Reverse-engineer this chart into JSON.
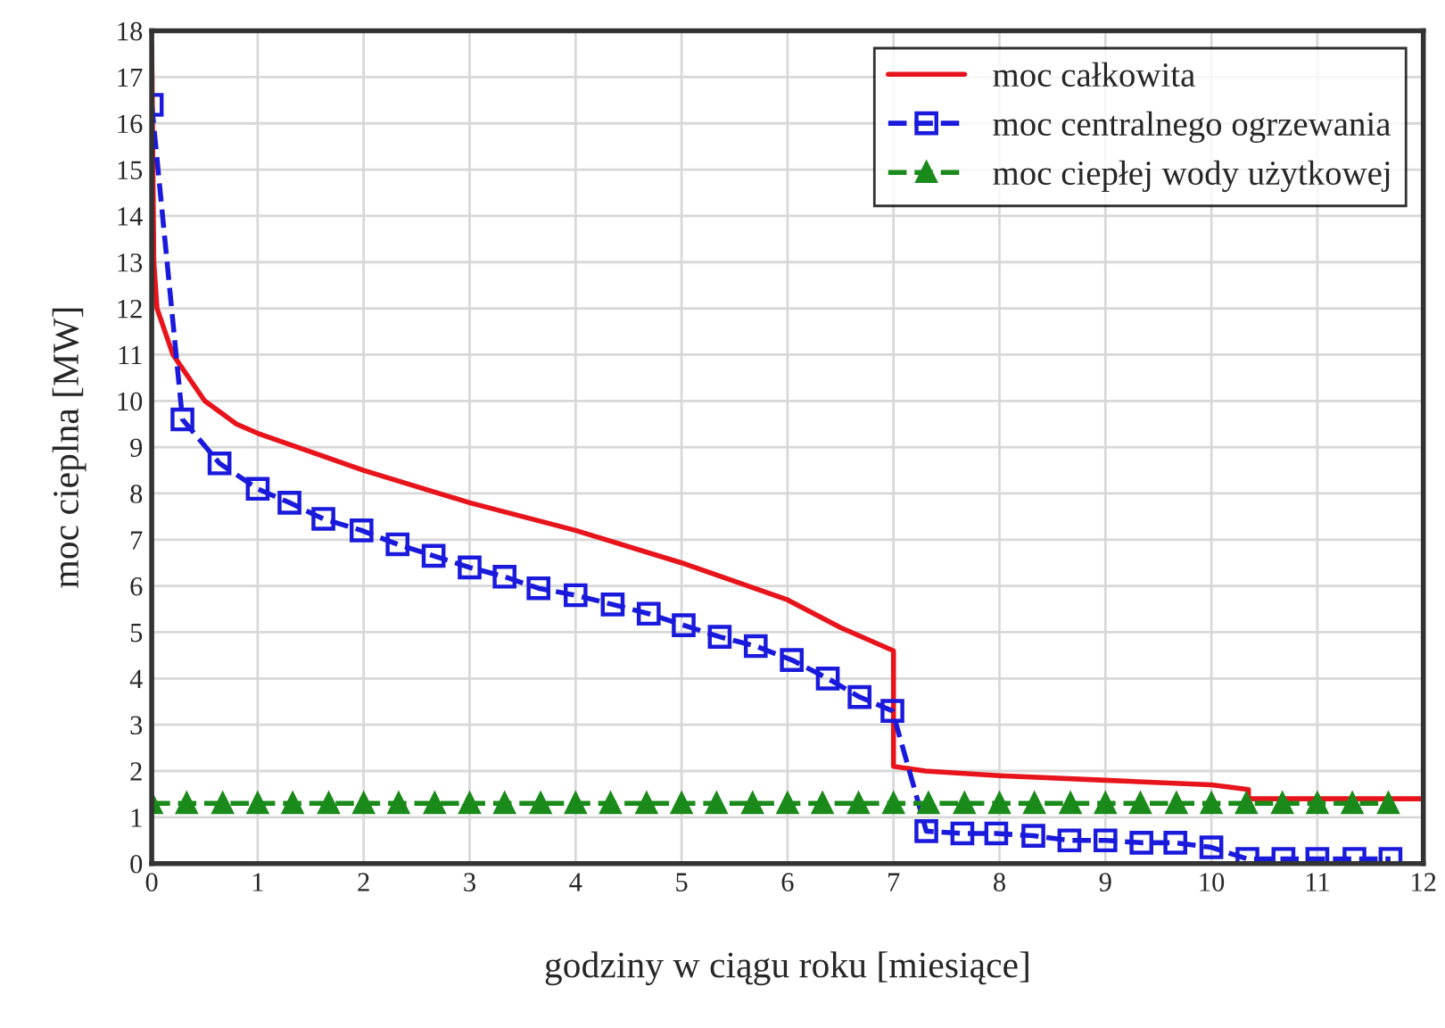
{
  "chart_data": {
    "type": "line",
    "xlabel": "godziny w ciągu roku [miesiące]",
    "ylabel": "moc cieplna [MW]",
    "xlim": [
      0,
      12
    ],
    "ylim": [
      0,
      18
    ],
    "xticks": [
      0,
      1,
      2,
      3,
      4,
      5,
      6,
      7,
      8,
      9,
      10,
      11,
      12
    ],
    "yticks": [
      0,
      1,
      2,
      3,
      4,
      5,
      6,
      7,
      8,
      9,
      10,
      11,
      12,
      13,
      14,
      15,
      16,
      17,
      18
    ],
    "grid": true,
    "legend": "top right",
    "series": [
      {
        "name": "moc całkowita",
        "color": "#e8141c",
        "marker": "none",
        "line_style": "solid",
        "x": [
          0,
          0.02,
          0.05,
          0.2,
          0.5,
          0.8,
          1,
          2,
          3,
          4,
          5,
          6,
          6.5,
          7,
          7,
          7.3,
          8,
          9,
          10,
          10.35,
          10.35,
          12
        ],
        "values": [
          17.7,
          13,
          12,
          11,
          10,
          9.5,
          9.3,
          8.5,
          7.8,
          7.2,
          6.5,
          5.7,
          5.1,
          4.6,
          2.1,
          2.0,
          1.9,
          1.8,
          1.7,
          1.6,
          1.4,
          1.4
        ]
      },
      {
        "name": "moc centralnego ogrzewania",
        "color": "#1a1adc",
        "marker": "square",
        "line_style": "dashed",
        "x": [
          0,
          0.29,
          0.64,
          1.0,
          1.3,
          1.62,
          1.98,
          2.32,
          2.66,
          3.0,
          3.33,
          3.65,
          4.0,
          4.35,
          4.69,
          5.02,
          5.36,
          5.7,
          6.04,
          6.38,
          6.68,
          6.99,
          7.31,
          7.65,
          7.97,
          8.32,
          8.66,
          9.0,
          9.34,
          9.66,
          10.0,
          10.34,
          10.68,
          11.0,
          11.35,
          11.69
        ],
        "values": [
          16.4,
          9.6,
          8.65,
          8.1,
          7.8,
          7.45,
          7.2,
          6.9,
          6.65,
          6.4,
          6.2,
          5.95,
          5.8,
          5.6,
          5.4,
          5.15,
          4.9,
          4.7,
          4.4,
          4.0,
          3.6,
          3.3,
          0.7,
          0.65,
          0.65,
          0.6,
          0.5,
          0.5,
          0.45,
          0.45,
          0.35,
          0.1,
          0.1,
          0.1,
          0.1,
          0.1
        ]
      },
      {
        "name": "moc ciepłej wody użytkowej",
        "color": "#1a8a1a",
        "marker": "triangle",
        "line_style": "dashed",
        "x": [
          0,
          0.33,
          0.67,
          1,
          1.33,
          1.67,
          2,
          2.33,
          2.67,
          3,
          3.33,
          3.67,
          4,
          4.33,
          4.67,
          5,
          5.33,
          5.67,
          6,
          6.33,
          6.67,
          7,
          7.33,
          7.67,
          8,
          8.33,
          8.67,
          9,
          9.33,
          9.67,
          10,
          10.33,
          10.67,
          11,
          11.33,
          11.67
        ],
        "values": [
          1.3,
          1.3,
          1.3,
          1.3,
          1.3,
          1.3,
          1.3,
          1.3,
          1.3,
          1.3,
          1.3,
          1.3,
          1.3,
          1.3,
          1.3,
          1.3,
          1.3,
          1.3,
          1.3,
          1.3,
          1.3,
          1.3,
          1.3,
          1.3,
          1.3,
          1.3,
          1.3,
          1.3,
          1.3,
          1.3,
          1.3,
          1.3,
          1.3,
          1.3,
          1.3,
          1.3
        ]
      }
    ]
  }
}
